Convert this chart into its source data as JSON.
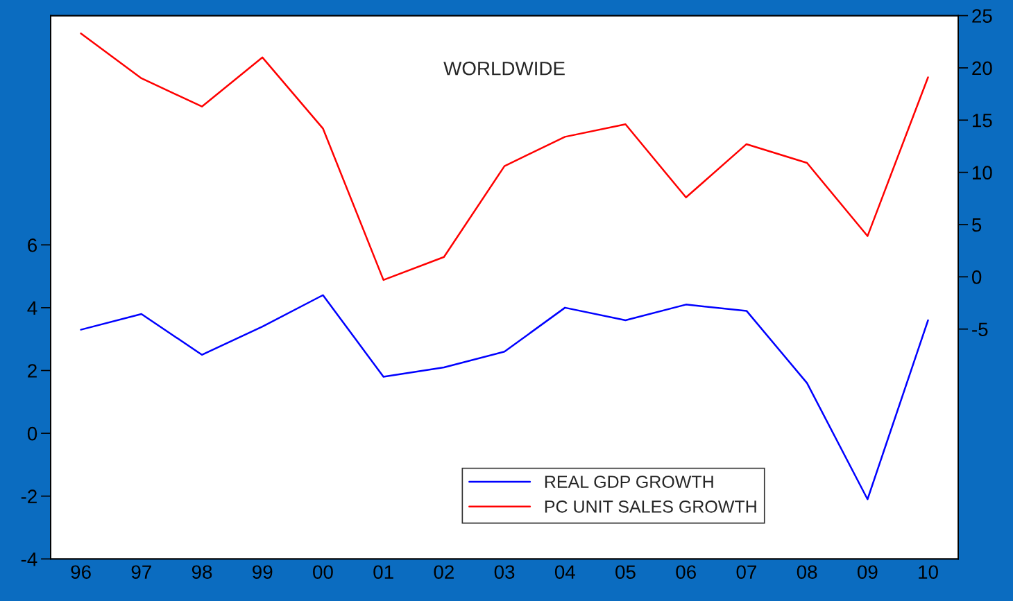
{
  "chart_data": {
    "type": "line",
    "title": "WORLDWIDE",
    "categories": [
      "96",
      "97",
      "98",
      "99",
      "00",
      "01",
      "02",
      "03",
      "04",
      "05",
      "06",
      "07",
      "08",
      "09",
      "10"
    ],
    "series": [
      {
        "name": "REAL GDP GROWTH",
        "color": "#0000ff",
        "values": [
          3.3,
          3.8,
          2.5,
          3.4,
          4.4,
          1.8,
          2.1,
          2.6,
          4.0,
          3.6,
          4.1,
          3.9,
          1.6,
          -2.1,
          3.6
        ]
      },
      {
        "name": "PC UNIT SALES GROWTH",
        "color": "#ff0000",
        "axis": "y2",
        "values": [
          23.3,
          19.0,
          16.3,
          21.0,
          14.2,
          -0.3,
          1.9,
          10.6,
          13.4,
          14.6,
          7.6,
          12.7,
          10.9,
          3.9,
          19.1
        ]
      }
    ],
    "ylim": [
      -4,
      13.3
    ],
    "yticks": [
      -4,
      -2,
      0,
      2,
      4,
      6
    ],
    "y2lim": [
      -27,
      25
    ],
    "y2ticks": [
      -5,
      0,
      5,
      10,
      15,
      20,
      25
    ],
    "grid": false,
    "legend": "bottom",
    "line_style": "solid"
  }
}
